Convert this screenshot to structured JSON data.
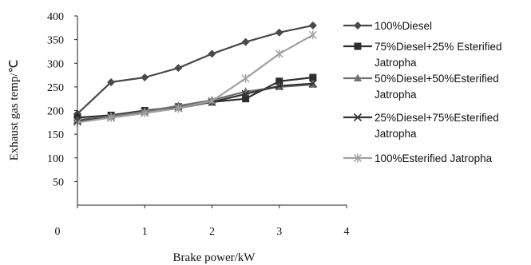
{
  "chart_data": {
    "type": "line",
    "xlabel": "Brake power/kW",
    "ylabel": "Exhaust gas temp/℃",
    "xlim": [
      0,
      4
    ],
    "ylim": [
      0,
      400
    ],
    "x_ticks": [
      "0",
      "1",
      "2",
      "3",
      "4"
    ],
    "y_ticks": [
      "50",
      "100",
      "150",
      "200",
      "250",
      "300",
      "350",
      "400"
    ],
    "grid": false,
    "legend_position": "right",
    "series": [
      {
        "name": "100%Diesel",
        "marker": "diamond",
        "color": "#4a4a4a",
        "points": [
          [
            0,
            193
          ],
          [
            0.5,
            260
          ],
          [
            1,
            270
          ],
          [
            1.5,
            290
          ],
          [
            2,
            320
          ],
          [
            2.5,
            345
          ],
          [
            3,
            365
          ],
          [
            3.5,
            380
          ]
        ]
      },
      {
        "name": "75%Diesel+25% Esterified Jatropha",
        "marker": "square",
        "color": "#2e2e2e",
        "points": [
          [
            0,
            185
          ],
          [
            0.5,
            190
          ],
          [
            1,
            200
          ],
          [
            1.5,
            208
          ],
          [
            2,
            218
          ],
          [
            2.5,
            225
          ],
          [
            3,
            262
          ],
          [
            3.5,
            270
          ]
        ]
      },
      {
        "name": "50%Diesel+50%Esterified Jatropha",
        "marker": "triangle",
        "color": "#707070",
        "points": [
          [
            0,
            180
          ],
          [
            0.5,
            188
          ],
          [
            1,
            198
          ],
          [
            1.5,
            210
          ],
          [
            2,
            222
          ],
          [
            2.5,
            240
          ],
          [
            3,
            250
          ],
          [
            3.5,
            255
          ]
        ]
      },
      {
        "name": "25%Diesel+75%Esterified Jatropha",
        "marker": "x",
        "color": "#333333",
        "points": [
          [
            0,
            178
          ],
          [
            0.5,
            185
          ],
          [
            1,
            195
          ],
          [
            1.5,
            205
          ],
          [
            2,
            218
          ],
          [
            2.5,
            235
          ],
          [
            3,
            252
          ],
          [
            3.5,
            257
          ]
        ]
      },
      {
        "name": "100%Esterified Jatropha",
        "marker": "star",
        "color": "#a0a0a0",
        "points": [
          [
            0,
            175
          ],
          [
            0.5,
            185
          ],
          [
            1,
            195
          ],
          [
            1.5,
            205
          ],
          [
            2,
            220
          ],
          [
            2.5,
            268
          ],
          [
            3,
            320
          ],
          [
            3.5,
            360
          ]
        ]
      }
    ]
  },
  "legend": {
    "entries": [
      {
        "lines": [
          "100%Diesel"
        ]
      },
      {
        "lines": [
          "75%Diesel+25% Esterified",
          "Jatropha"
        ]
      },
      {
        "lines": [
          "50%Diesel+50%Esterified",
          "Jatropha"
        ]
      },
      {
        "lines": [
          "25%Diesel+75%Esterified",
          "Jatropha"
        ]
      },
      {
        "lines": [
          "100%Esterified Jatropha"
        ]
      }
    ]
  }
}
